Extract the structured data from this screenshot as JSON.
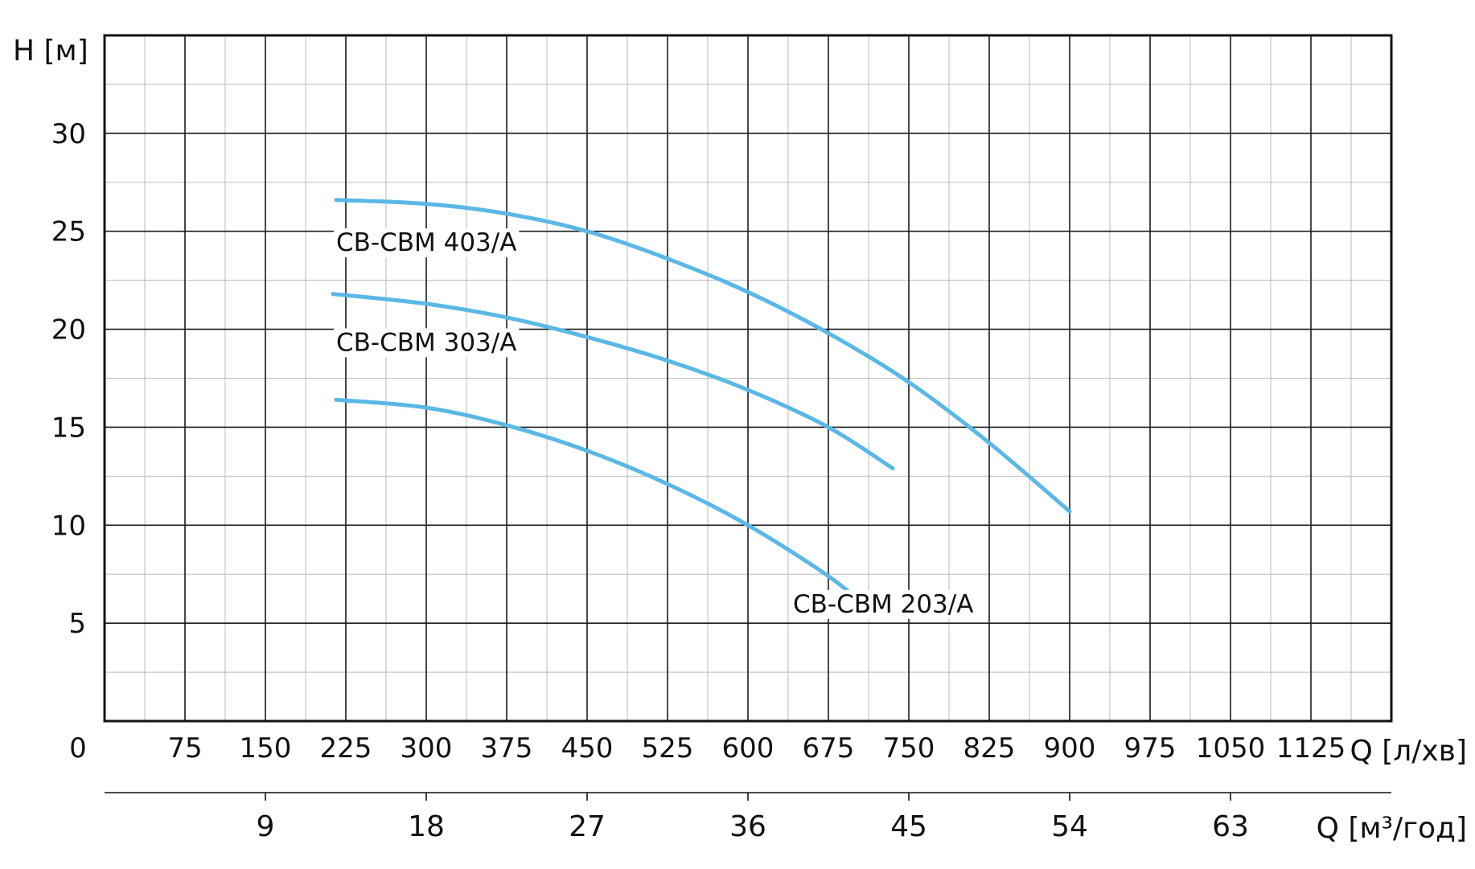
{
  "chart_data": {
    "type": "line",
    "ylabel": "H [м]",
    "xlabel": "Q [л/хв]",
    "x2label": "Q [м³/год]",
    "xlim": [
      0,
      1200
    ],
    "ylim": [
      0,
      35
    ],
    "x_ticks": [
      "0",
      "75",
      "150",
      "225",
      "300",
      "375",
      "450",
      "525",
      "600",
      "675",
      "750",
      "825",
      "900",
      "975",
      "1050",
      "1125"
    ],
    "y_ticks": [
      "5",
      "10",
      "15",
      "20",
      "25",
      "30"
    ],
    "x2_ticks": [
      "9",
      "18",
      "27",
      "36",
      "45",
      "54",
      "63"
    ],
    "grid": true,
    "line_color": "#5bb8e6",
    "series": [
      {
        "name": "CB-CBM 403/A",
        "x": [
          216,
          300,
          375,
          450,
          525,
          600,
          675,
          750,
          825,
          900
        ],
        "y": [
          26.6,
          26.4,
          25.9,
          25.0,
          23.6,
          21.9,
          19.8,
          17.3,
          14.2,
          10.7
        ]
      },
      {
        "name": "CB-CBM 303/A",
        "x": [
          213,
          300,
          375,
          450,
          525,
          600,
          675,
          735
        ],
        "y": [
          21.8,
          21.3,
          20.6,
          19.6,
          18.4,
          16.9,
          15.0,
          12.9
        ]
      },
      {
        "name": "CB-CBM 203/A",
        "x": [
          216,
          300,
          375,
          450,
          525,
          600,
          675,
          713
        ],
        "y": [
          16.4,
          16.0,
          15.1,
          13.8,
          12.1,
          10.0,
          7.4,
          5.7
        ]
      }
    ]
  }
}
